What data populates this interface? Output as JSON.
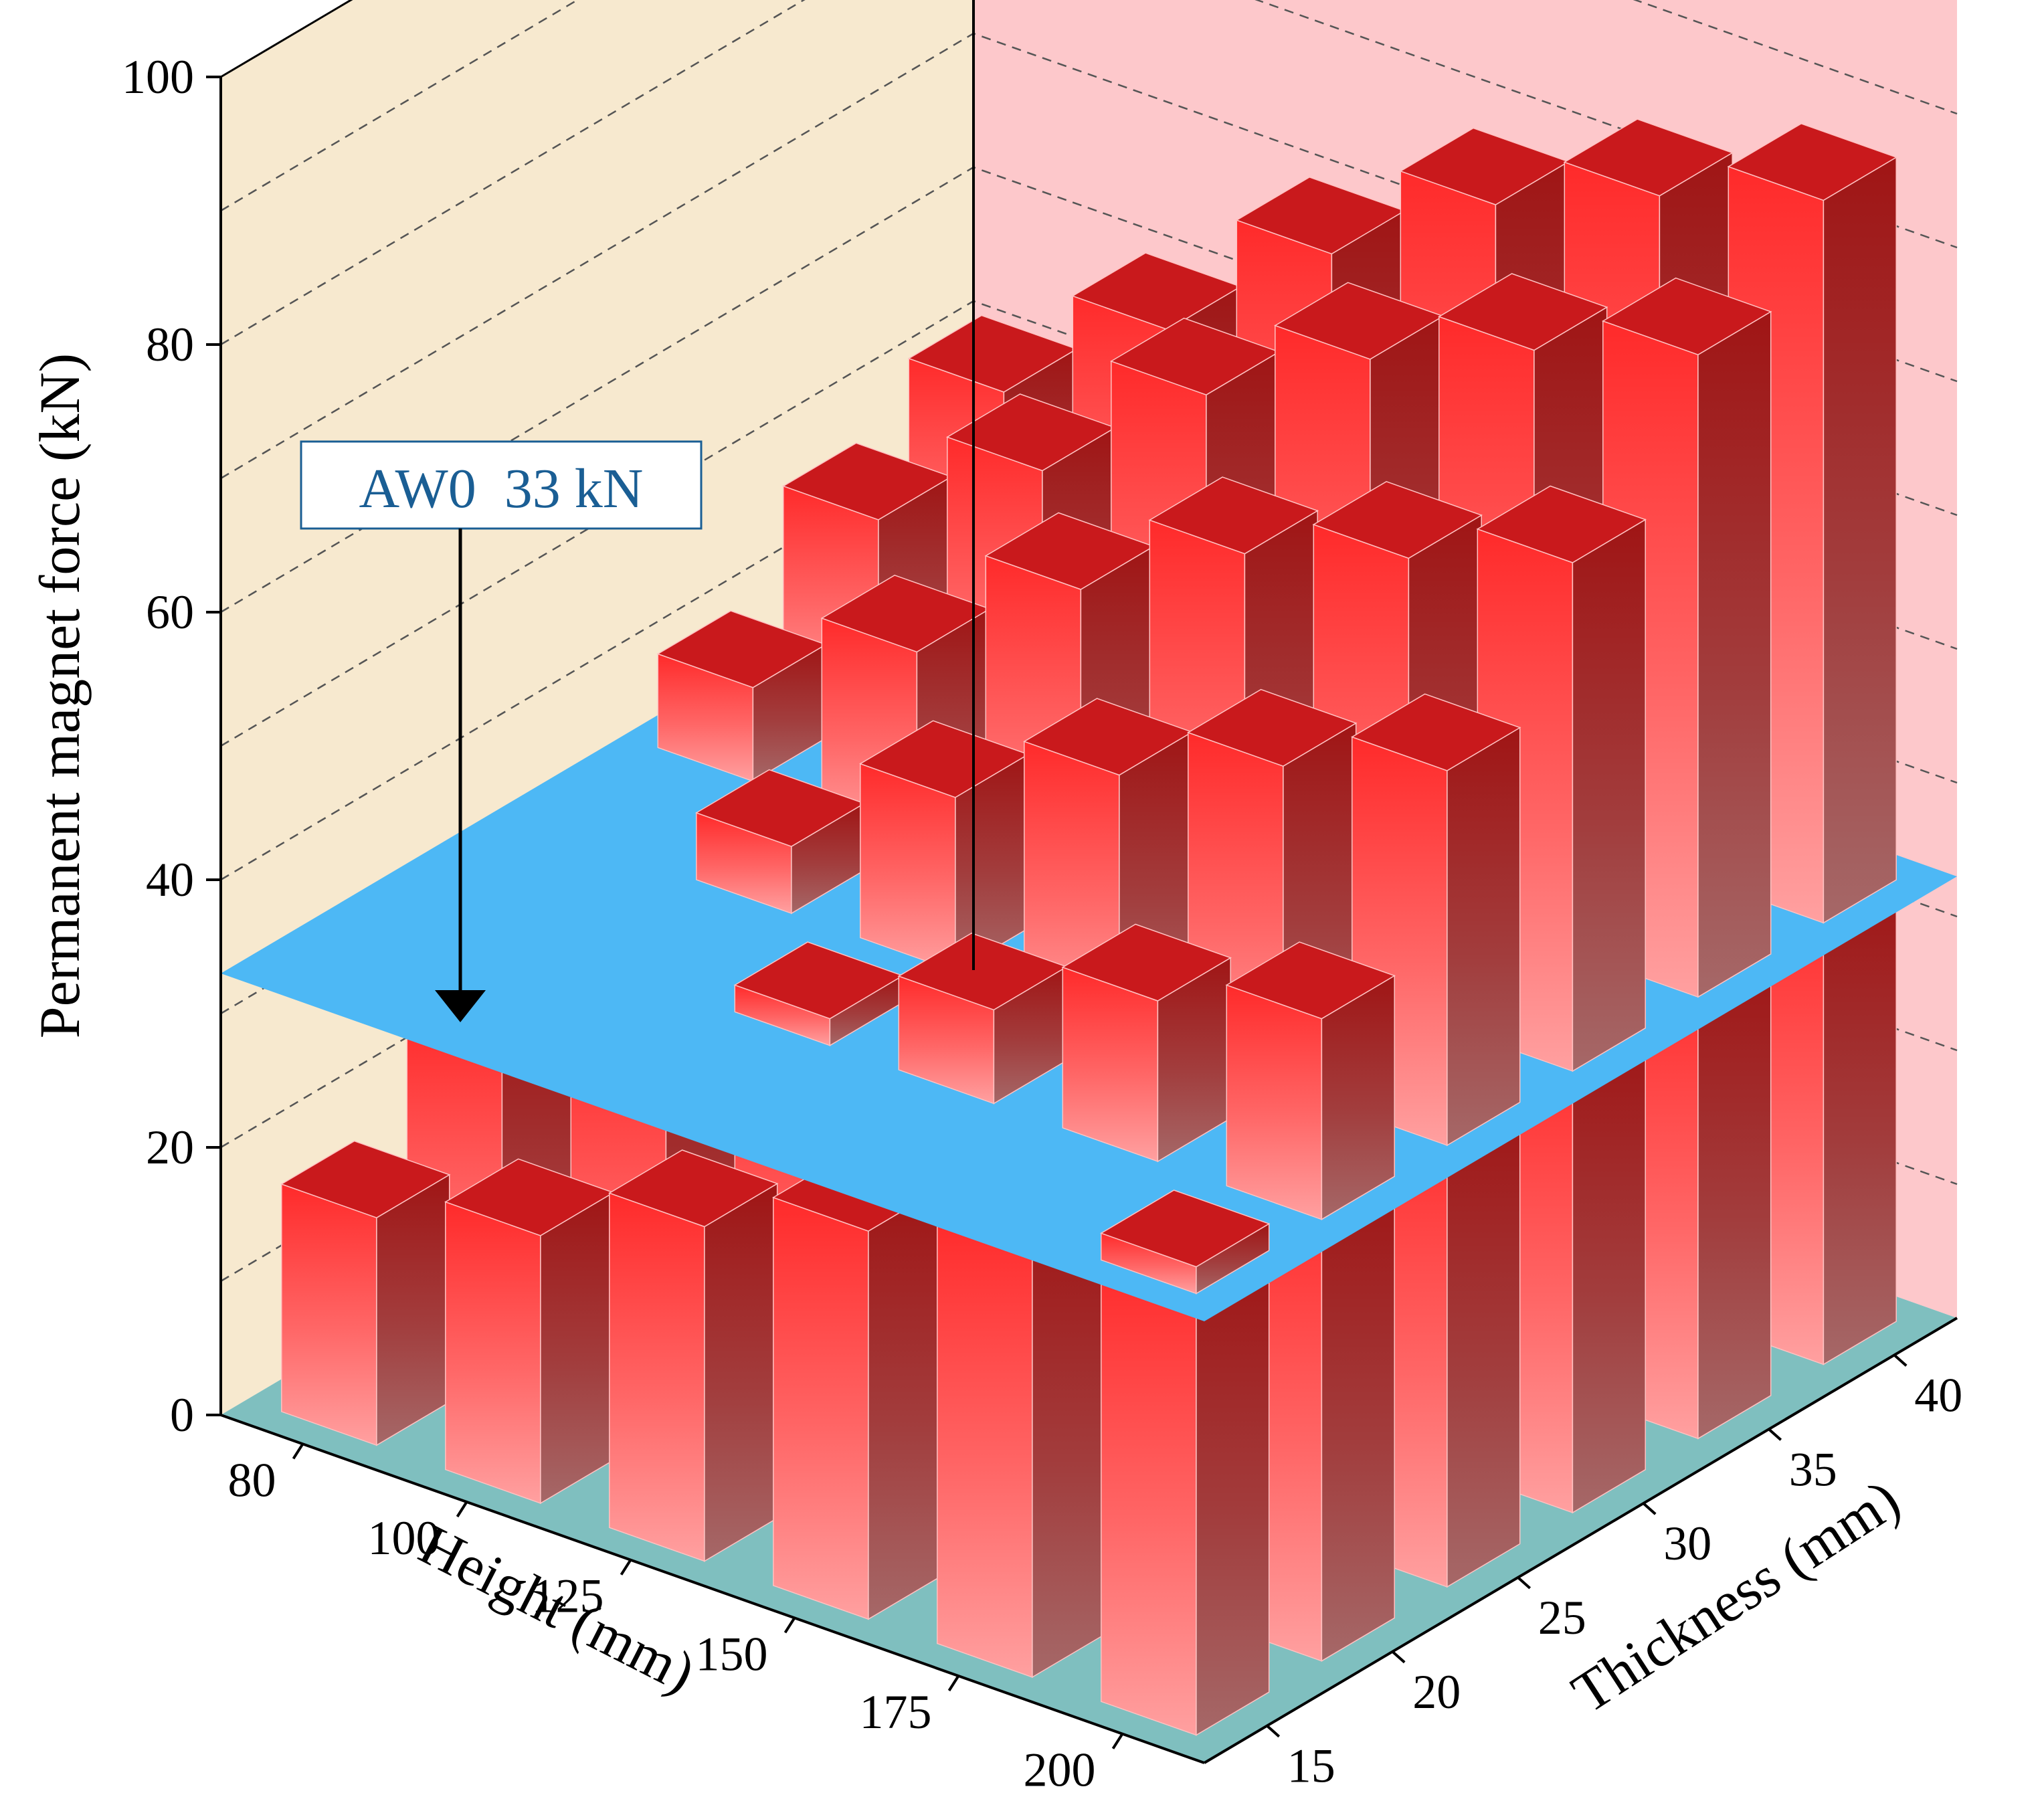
{
  "chart_data": {
    "type": "bar3d",
    "title": "",
    "xlabel": "Height (mm)",
    "ylabel": "Thickness (mm)",
    "zlabel": "Permanent magnet force (kN)",
    "height_categories": [
      "80",
      "100",
      "125",
      "150",
      "175",
      "200"
    ],
    "thickness_categories": [
      "15",
      "20",
      "25",
      "30",
      "35",
      "40"
    ],
    "zlim": [
      0,
      100
    ],
    "zticks": [
      "0",
      "20",
      "40",
      "60",
      "80",
      "100"
    ],
    "gridlines": true,
    "values": [
      [
        17,
        24,
        33,
        40,
        47,
        51
      ],
      [
        20,
        28,
        38,
        47,
        55,
        60
      ],
      [
        25,
        35,
        46,
        56,
        65,
        70
      ],
      [
        29,
        40,
        52,
        63,
        72,
        78
      ],
      [
        32,
        45,
        57,
        67,
        77,
        83
      ],
      [
        35,
        48,
        61,
        71,
        81,
        87
      ]
    ],
    "threshold": {
      "value": 33,
      "label": "AW0  33 kN"
    },
    "colors": {
      "left_wall": "#f7e9cf",
      "right_wall": "#fdc8cb",
      "floor": "#7fbfbf",
      "threshold_plane": "#4db8f5",
      "bar_top": "#c9191c",
      "bar_front_top": "#ff2a2a",
      "bar_front_bottom": "#ff9d9d",
      "bar_side_top": "#9e1515",
      "bar_side_bottom": "#a06363",
      "annotation_text": "#1a5e94"
    }
  }
}
